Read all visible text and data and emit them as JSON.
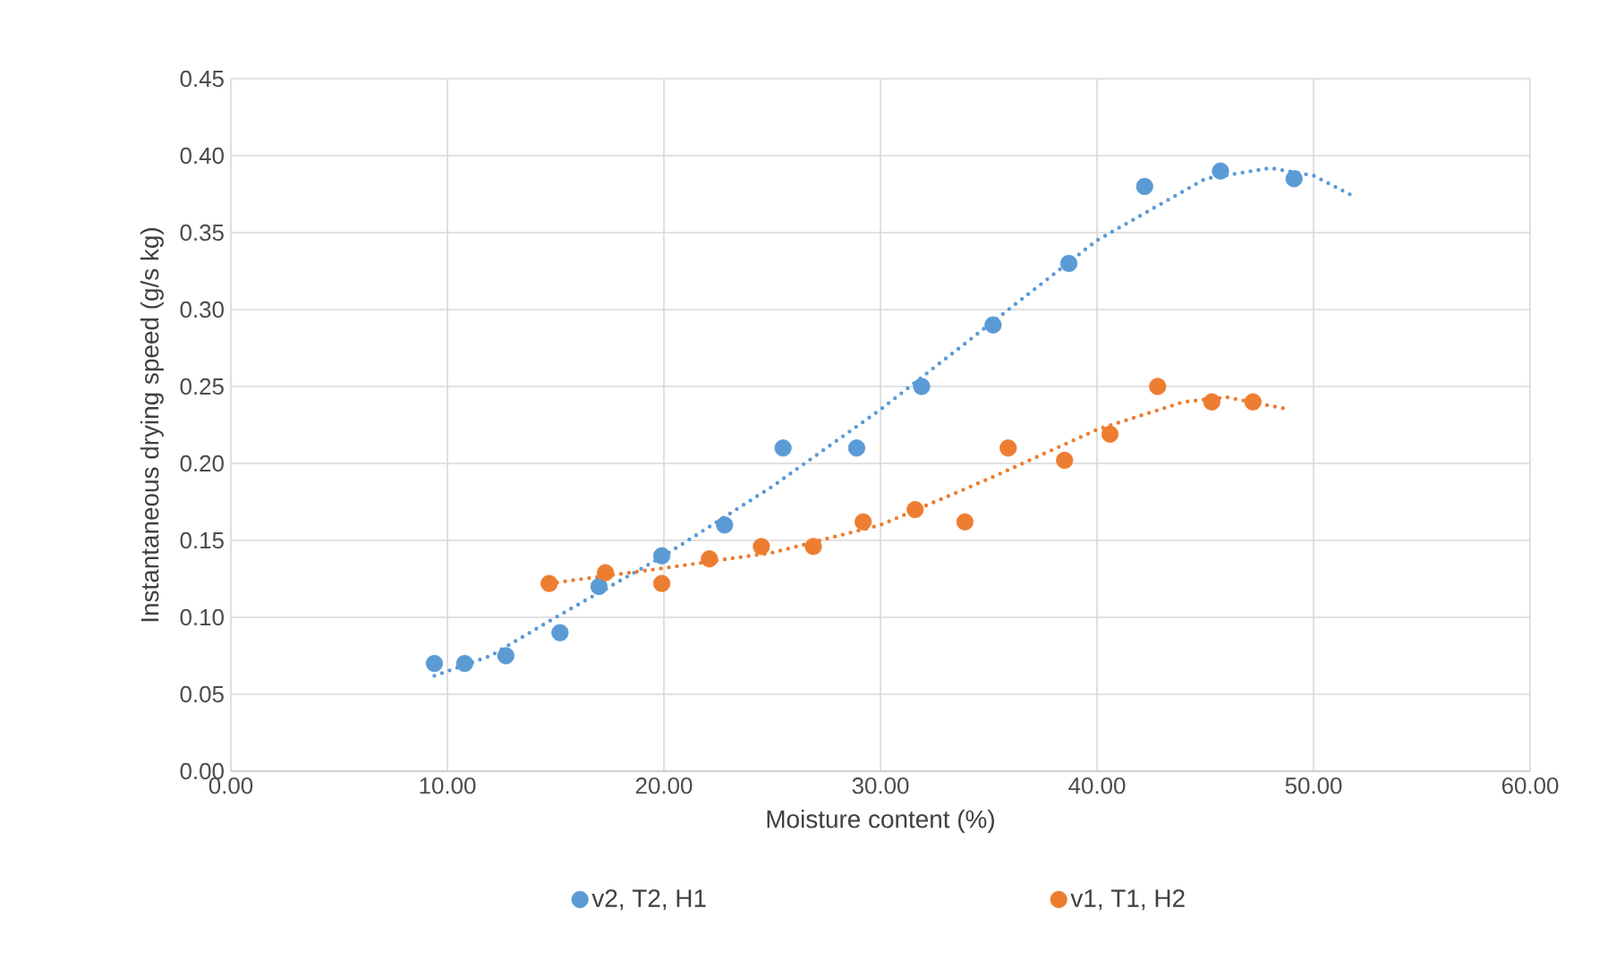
{
  "chart_data": {
    "type": "scatter",
    "xlabel": "Moisture content (%)",
    "ylabel": "Instantaneous drying speed (g/s kg)",
    "xlim": [
      0,
      60
    ],
    "ylim": [
      0,
      0.45
    ],
    "xticks": [
      {
        "value": 0,
        "label": "0.00"
      },
      {
        "value": 10,
        "label": "10.00"
      },
      {
        "value": 20,
        "label": "20.00"
      },
      {
        "value": 30,
        "label": "30.00"
      },
      {
        "value": 40,
        "label": "40.00"
      },
      {
        "value": 50,
        "label": "50.00"
      },
      {
        "value": 60,
        "label": "60.00"
      }
    ],
    "yticks": [
      {
        "value": 0,
        "label": "0.00"
      },
      {
        "value": 0.05,
        "label": "0.05"
      },
      {
        "value": 0.1,
        "label": "0.10"
      },
      {
        "value": 0.15,
        "label": "0.15"
      },
      {
        "value": 0.2,
        "label": "0.20"
      },
      {
        "value": 0.25,
        "label": "0.25"
      },
      {
        "value": 0.3,
        "label": "0.30"
      },
      {
        "value": 0.35,
        "label": "0.35"
      },
      {
        "value": 0.4,
        "label": "0.40"
      },
      {
        "value": 0.45,
        "label": "0.45"
      }
    ],
    "grid": true,
    "legend": "bottom",
    "marker": "circle",
    "series": [
      {
        "name": "v2, T2, H1",
        "color": "#5b9bd5",
        "x": [
          9.4,
          10.8,
          12.7,
          15.2,
          17.0,
          19.9,
          22.8,
          25.5,
          28.9,
          31.9,
          35.2,
          38.7,
          42.2,
          45.7,
          49.1
        ],
        "values": [
          0.07,
          0.07,
          0.075,
          0.09,
          0.12,
          0.14,
          0.16,
          0.21,
          0.21,
          0.25,
          0.29,
          0.33,
          0.38,
          0.39,
          0.385
        ]
      },
      {
        "name": "v1, T1, H2",
        "color": "#ed7d31",
        "x": [
          14.7,
          17.3,
          19.9,
          22.1,
          24.5,
          26.9,
          29.2,
          31.6,
          33.9,
          35.9,
          38.5,
          40.6,
          42.8,
          45.3,
          47.2
        ],
        "values": [
          0.122,
          0.129,
          0.122,
          0.138,
          0.146,
          0.146,
          0.162,
          0.17,
          0.162,
          0.21,
          0.202,
          0.219,
          0.25,
          0.24,
          0.24
        ]
      },
      {
        "type": "line",
        "line_style": "dotted",
        "marker": "none",
        "color": "#5b9bd5",
        "x": [
          9.4,
          12,
          15,
          20,
          25,
          30,
          35,
          40,
          45,
          48,
          50,
          51.8
        ],
        "values": [
          0.062,
          0.075,
          0.1,
          0.14,
          0.185,
          0.235,
          0.29,
          0.345,
          0.385,
          0.392,
          0.387,
          0.374
        ]
      },
      {
        "type": "line",
        "line_style": "dotted",
        "marker": "none",
        "color": "#ed7d31",
        "x": [
          14.7,
          20,
          25,
          30,
          35,
          40,
          44,
          46,
          48.9
        ],
        "values": [
          0.122,
          0.132,
          0.142,
          0.16,
          0.19,
          0.222,
          0.24,
          0.243,
          0.235
        ]
      }
    ]
  }
}
